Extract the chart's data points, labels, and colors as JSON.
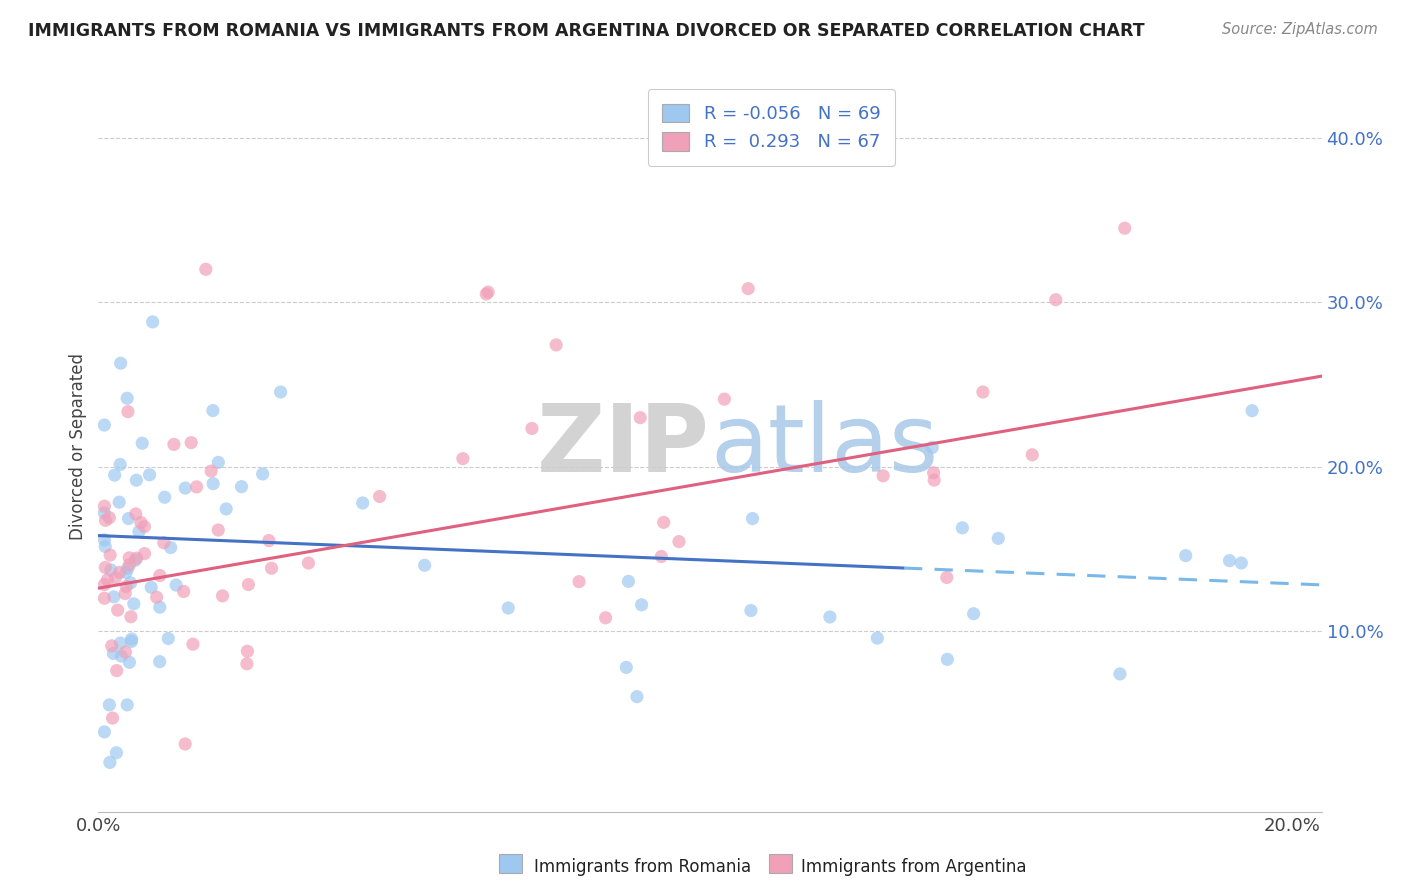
{
  "title": "IMMIGRANTS FROM ROMANIA VS IMMIGRANTS FROM ARGENTINA DIVORCED OR SEPARATED CORRELATION CHART",
  "source": "Source: ZipAtlas.com",
  "ylabel": "Divorced or Separated",
  "xlim": [
    0.0,
    0.205
  ],
  "ylim": [
    -0.01,
    0.435
  ],
  "yticks": [
    0.1,
    0.2,
    0.3,
    0.4
  ],
  "ytick_labels": [
    "10.0%",
    "20.0%",
    "30.0%",
    "40.0%"
  ],
  "xticks": [
    0.0,
    0.025,
    0.05,
    0.075,
    0.1,
    0.125,
    0.15,
    0.175,
    0.2
  ],
  "xtick_labels": [
    "0.0%",
    "",
    "",
    "",
    "",
    "",
    "",
    "",
    "20.0%"
  ],
  "r_romania": -0.056,
  "n_romania": 69,
  "r_argentina": 0.293,
  "n_argentina": 67,
  "color_romania": "#9ec8f0",
  "color_argentina": "#f0a0b8",
  "line_color_romania_solid": "#4472c4",
  "line_color_romania_dash": "#7ab8e8",
  "line_color_argentina": "#e06080",
  "text_color": "#4472c4",
  "grid_color": "#cccccc",
  "romania_line_y0": 0.158,
  "romania_line_y_solid_end": 0.14,
  "romania_line_x_dash_start": 0.135,
  "romania_line_y_dash_end": 0.128,
  "argentina_line_y0": 0.126,
  "argentina_line_y1": 0.255,
  "scatter_size": 90,
  "scatter_alpha": 0.7
}
